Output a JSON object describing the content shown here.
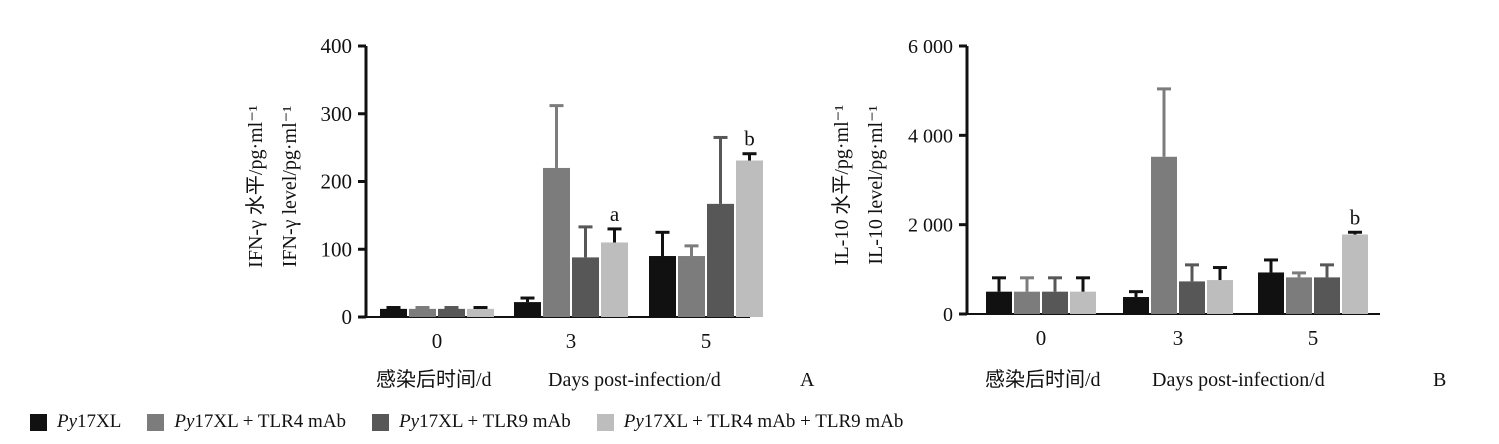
{
  "chart_data": [
    {
      "type": "bar",
      "panel_label": "A",
      "categories": [
        "0",
        "3",
        "5"
      ],
      "xlabel_cn": "感染后时间/d",
      "xlabel_en": "Days  post-infection/d",
      "ylabel_cn": "IFN-γ  水平/pg·ml⁻¹",
      "ylabel_en": "IFN-γ  level/pg·ml⁻¹",
      "ylim": [
        0,
        400
      ],
      "yticks": [
        "0",
        "100",
        "200",
        "300",
        "400"
      ],
      "ytick_values": [
        0,
        100,
        200,
        300,
        400
      ],
      "series": [
        {
          "name": "Py17XL",
          "values": [
            12,
            22,
            90
          ],
          "errors": [
            2,
            6,
            35
          ]
        },
        {
          "name": "Py17XL + TLR4  mAb",
          "values": [
            12,
            220,
            90
          ],
          "errors": [
            2,
            92,
            15
          ]
        },
        {
          "name": "Py17XL + TLR9  mAb",
          "values": [
            12,
            88,
            167
          ],
          "errors": [
            2,
            45,
            98
          ]
        },
        {
          "name": "Py17XL + TLR4  mAb + TLR9  mAb",
          "values": [
            12,
            110,
            231
          ],
          "errors": [
            2,
            20,
            10
          ]
        }
      ],
      "annotations": [
        {
          "text": "a",
          "category_index": 1,
          "series_index": 3
        },
        {
          "text": "b",
          "category_index": 2,
          "series_index": 3
        }
      ]
    },
    {
      "type": "bar",
      "panel_label": "B",
      "categories": [
        "0",
        "3",
        "5"
      ],
      "xlabel_cn": "感染后时间/d",
      "xlabel_en": "Days  post-infection/d",
      "ylabel_cn": "IL-10 水平/pg·ml⁻¹",
      "ylabel_en": "IL-10  level/pg·ml⁻¹",
      "ylim": [
        0,
        6000
      ],
      "yticks": [
        "0",
        "2 000",
        "4 000",
        "6 000"
      ],
      "ytick_values": [
        0,
        2000,
        4000,
        6000
      ],
      "series": [
        {
          "name": "Py17XL",
          "values": [
            500,
            380,
            930
          ],
          "errors": [
            310,
            120,
            280
          ]
        },
        {
          "name": "Py17XL + TLR4  mAb",
          "values": [
            500,
            3520,
            820
          ],
          "errors": [
            310,
            1520,
            100
          ]
        },
        {
          "name": "Py17XL + TLR9  mAb",
          "values": [
            500,
            730,
            820
          ],
          "errors": [
            310,
            370,
            280
          ]
        },
        {
          "name": "Py17XL + TLR4  mAb + TLR9  mAb",
          "values": [
            500,
            760,
            1780
          ],
          "errors": [
            310,
            280,
            50
          ]
        }
      ],
      "annotations": [
        {
          "text": "b",
          "category_index": 2,
          "series_index": 3
        }
      ]
    }
  ],
  "colors": {
    "Py17XL": "#111111",
    "Py17XL + TLR4  mAb": "#7c7c7c",
    "Py17XL + TLR9  mAb": "#575757",
    "Py17XL + TLR4  mAb + TLR9  mAb": "#bdbdbd"
  },
  "legend": [
    {
      "prefix": "Py",
      "suffix": "17XL",
      "color": "#111111"
    },
    {
      "prefix": "Py",
      "suffix": "17XL + TLR4  mAb",
      "color": "#7c7c7c"
    },
    {
      "prefix": "Py",
      "suffix": "17XL + TLR9  mAb",
      "color": "#575757"
    },
    {
      "prefix": "Py",
      "suffix": "17XL + TLR4  mAb + TLR9  mAb",
      "color": "#bdbdbd"
    }
  ]
}
